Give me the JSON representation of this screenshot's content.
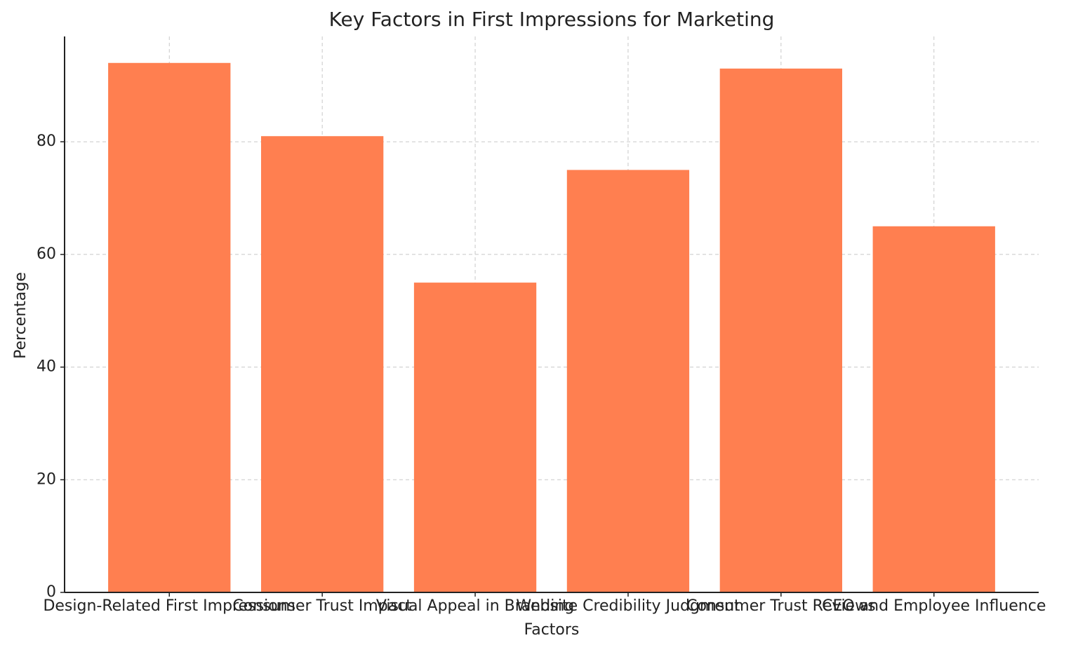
{
  "chart_data": {
    "type": "bar",
    "title": "Key Factors in First Impressions for Marketing",
    "x_label": "Factors",
    "y_label": "Percentage",
    "categories": [
      "Design-Related First Impressions",
      "Consumer Trust Impact",
      "Visual Appeal in Branding",
      "Website Credibility Judgment",
      "Consumer Trust Reviews",
      "CEO and Employee Influence"
    ],
    "values": [
      94,
      81,
      55,
      75,
      93,
      65
    ],
    "color": "#ff7f50",
    "ylim": [
      0,
      98.7
    ],
    "yticks": [
      0,
      20,
      40,
      60,
      80
    ],
    "grid": true
  }
}
